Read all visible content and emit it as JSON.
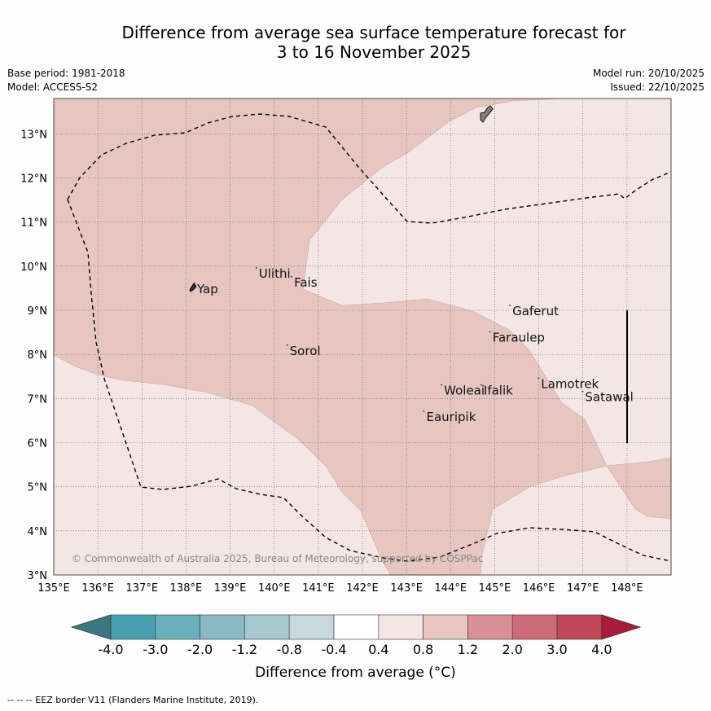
{
  "title_line1": "Difference from average sea surface temperature forecast for",
  "title_line2": "3 to 16 November 2025",
  "base_period": "Base period: 1981-2018",
  "model": "Model: ACCESS-S2",
  "model_run": "Model run: 20/10/2025",
  "issued": "Issued: 22/10/2025",
  "copyright": "© Commonwealth of Australia 2025, Bureau of Meteorology, supported by COSPPac",
  "footer": "--  --  -- EEZ border V11 (Flanders Marine Institute, 2019).",
  "map": {
    "lon_range": [
      135,
      149
    ],
    "lat_range": [
      3,
      13.8
    ],
    "lon_ticks": [
      "135°E",
      "136°E",
      "137°E",
      "138°E",
      "139°E",
      "140°E",
      "141°E",
      "142°E",
      "143°E",
      "144°E",
      "145°E",
      "146°E",
      "147°E",
      "148°E"
    ],
    "lat_ticks": [
      "3°N",
      "4°N",
      "5°N",
      "6°N",
      "7°N",
      "8°N",
      "9°N",
      "10°N",
      "11°N",
      "12°N",
      "13°N"
    ],
    "places": [
      {
        "name": "Yap",
        "lon": 138.25,
        "lat": 9.5
      },
      {
        "name": "Ulithi",
        "lon": 139.65,
        "lat": 9.85
      },
      {
        "name": "Fais",
        "lon": 140.45,
        "lat": 9.65
      },
      {
        "name": "Gaferut",
        "lon": 145.4,
        "lat": 9.0
      },
      {
        "name": "Faraulep",
        "lon": 144.95,
        "lat": 8.4
      },
      {
        "name": "Sorol",
        "lon": 140.35,
        "lat": 8.1
      },
      {
        "name": "Woleai",
        "lon": 143.85,
        "lat": 7.2
      },
      {
        "name": "Ifalik",
        "lon": 144.75,
        "lat": 7.2
      },
      {
        "name": "Lamotrek",
        "lon": 146.05,
        "lat": 7.35
      },
      {
        "name": "Satawal",
        "lon": 147.05,
        "lat": 7.05
      },
      {
        "name": "Eauripik",
        "lon": 143.45,
        "lat": 6.6
      }
    ]
  },
  "colorbar": {
    "ticks": [
      "-4.0",
      "-3.0",
      "-2.0",
      "-1.2",
      "-0.8",
      "-0.4",
      "0.4",
      "0.8",
      "1.2",
      "2.0",
      "3.0",
      "4.0"
    ],
    "colors": [
      "#3a7781",
      "#4aa0b1",
      "#6aaebc",
      "#89b9c5",
      "#a9c9d0",
      "#c9d8dd",
      "#ffffff",
      "#f4e6e4",
      "#e7c6c1",
      "#d69096",
      "#cd6b78",
      "#bf4758",
      "#a81c3a"
    ],
    "label": "Difference from average (°C)"
  }
}
